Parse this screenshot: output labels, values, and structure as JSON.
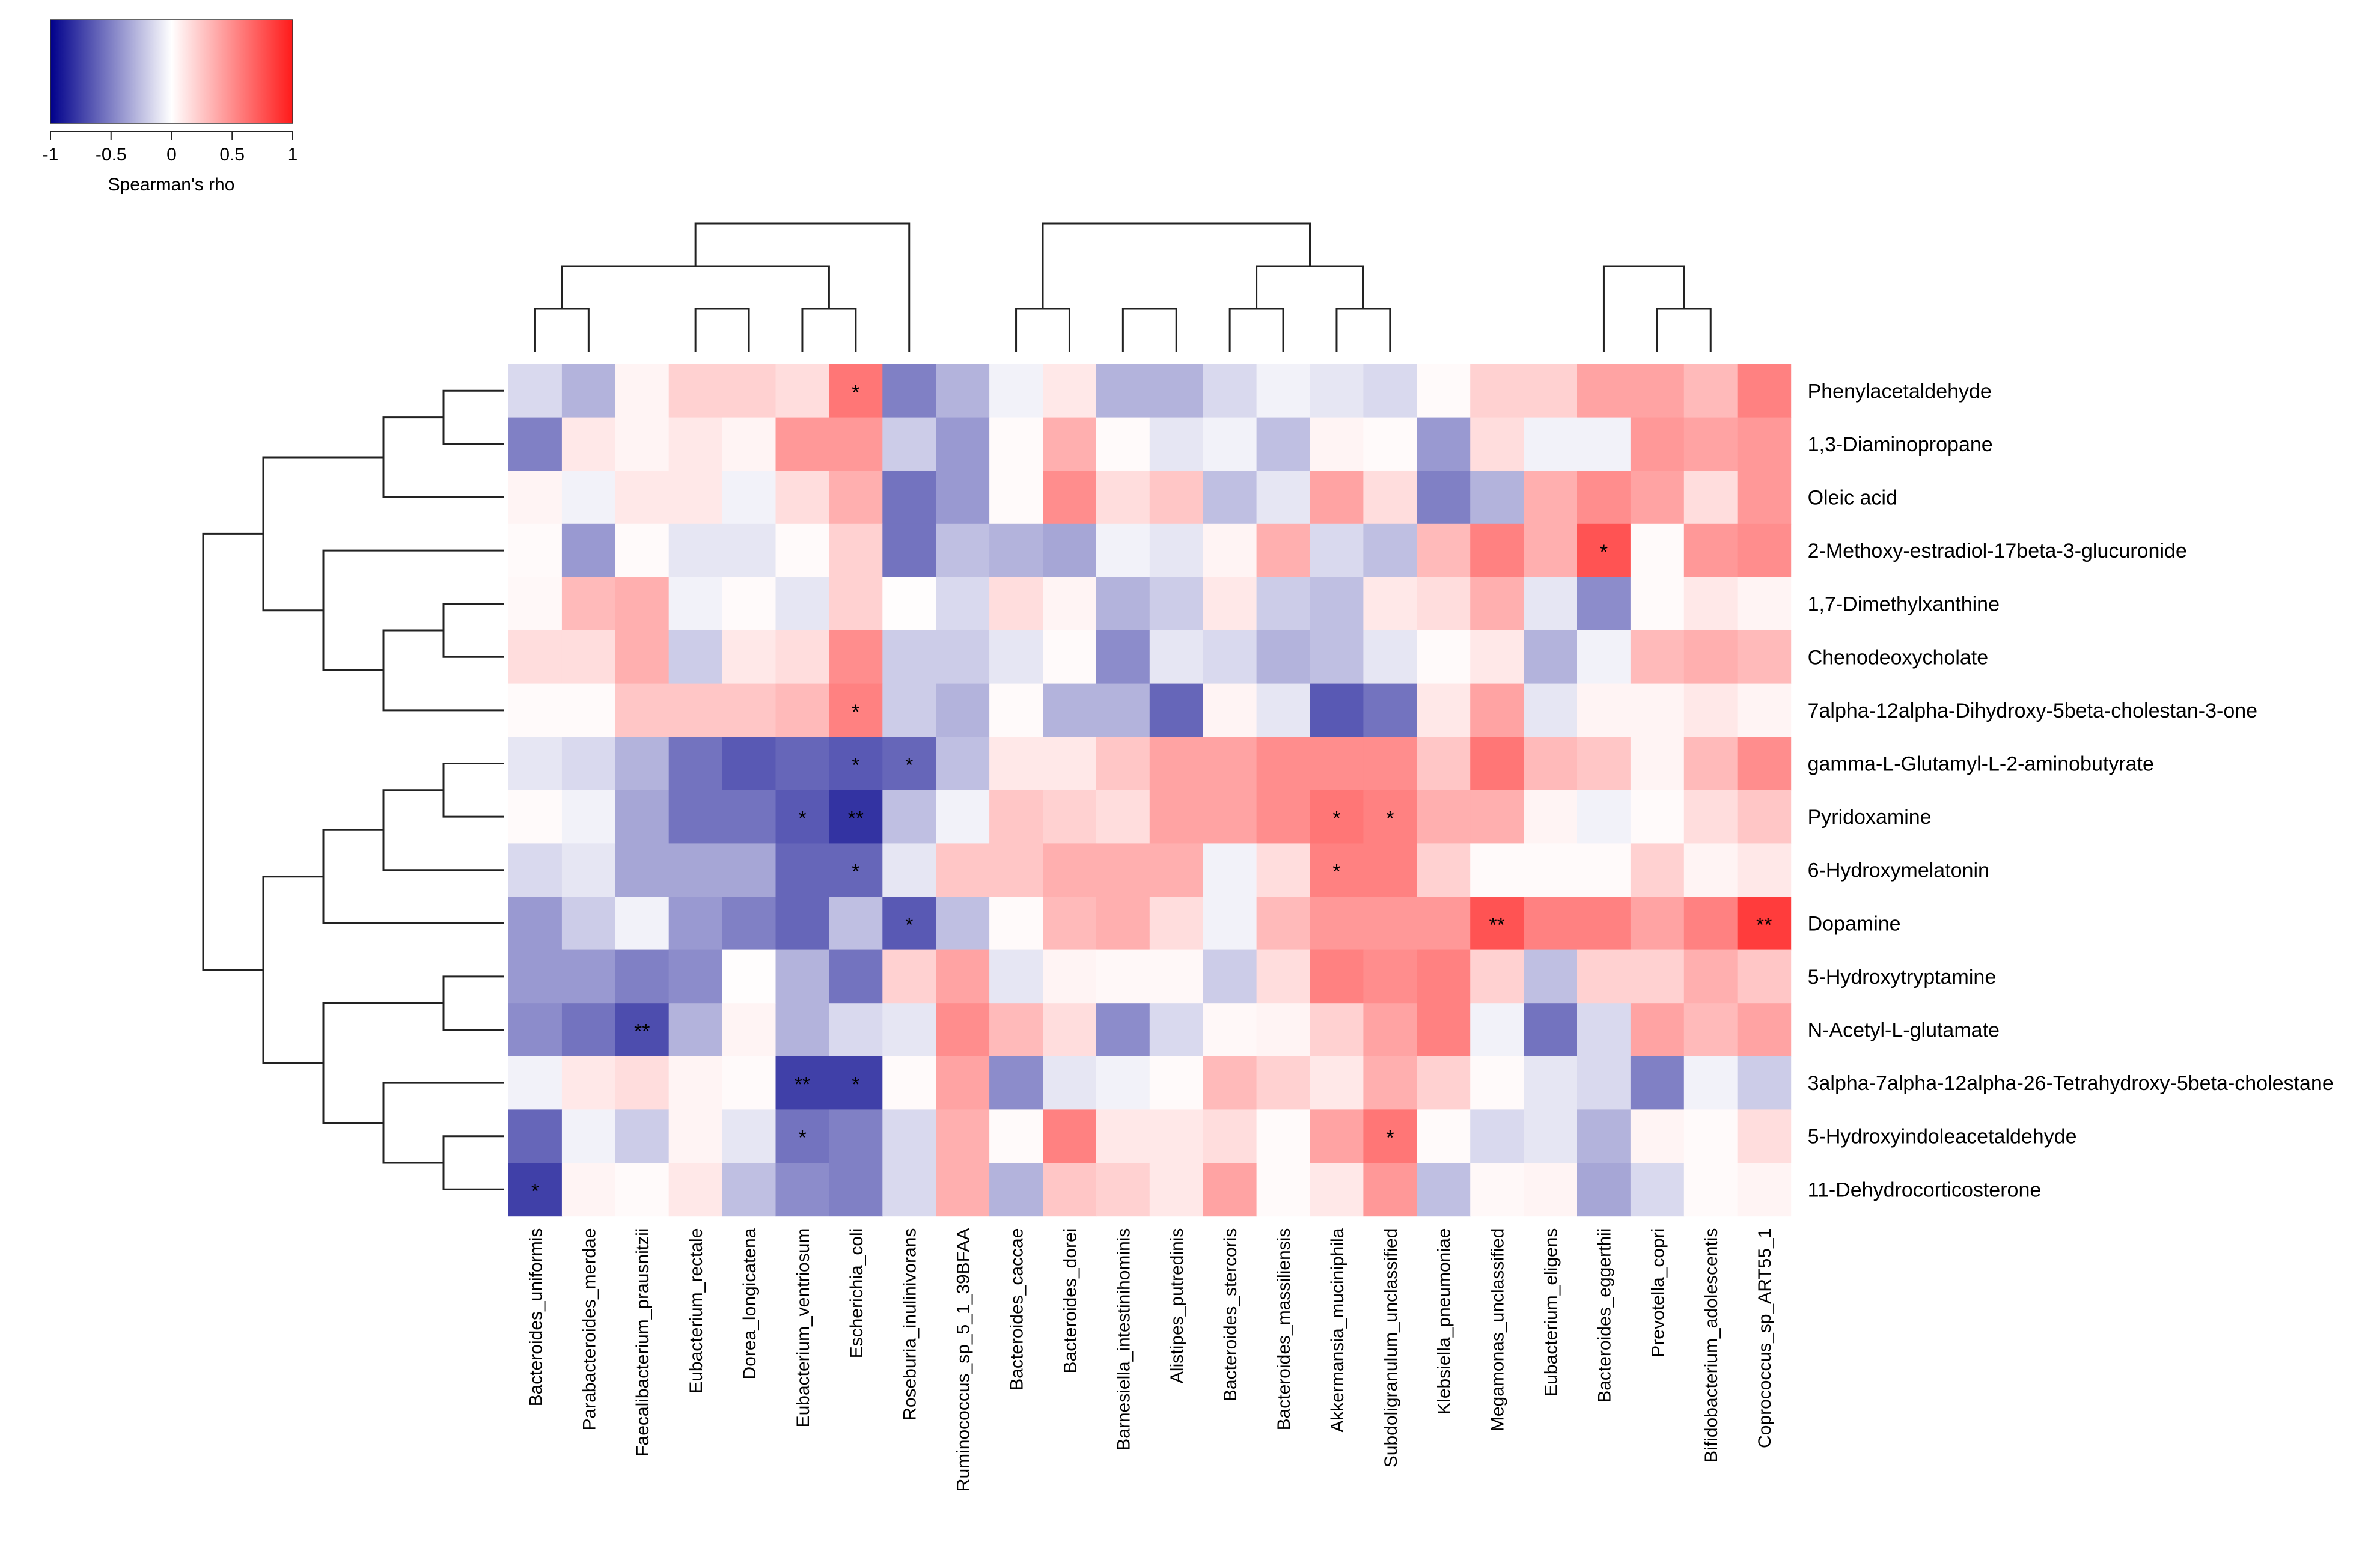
{
  "chart_data": {
    "type": "heatmap",
    "title": "",
    "colorbar": {
      "label": "Spearman's rho",
      "tick_labels": [
        "-1",
        "-0.5",
        "0",
        "0.5",
        "1"
      ],
      "tick_values": [
        -1,
        -0.5,
        0,
        0.5,
        1
      ],
      "range": [
        -1,
        1
      ],
      "low_color": "#00008b",
      "mid_color": "#ffffff",
      "high_color": "#ff1a1a"
    },
    "columns": [
      "Bacteroides_uniformis",
      "Parabacteroides_merdae",
      "Faecalibacterium_prausnitzii",
      "Eubacterium_rectale",
      "Dorea_longicatena",
      "Eubacterium_ventriosum",
      "Escherichia_coli",
      "Roseburia_inulinivorans",
      "Ruminococcus_sp_5_1_39BFAA",
      "Bacteroides_caccae",
      "Bacteroides_dorei",
      "Barnesiella_intestinihominis",
      "Alistipes_putredinis",
      "Bacteroides_stercoris",
      "Bacteroides_massiliensis",
      "Akkermansia_muciniphila",
      "Subdoligranulum_unclassified",
      "Klebsiella_pneumoniae",
      "Megamonas_unclassified",
      "Eubacterium_eligens",
      "Bacteroides_eggerthii",
      "Prevotella_copri",
      "Bifidobacterium_adolescentis",
      "Coprococcus_sp_ART55_1"
    ],
    "rows": [
      "Phenylacetaldehyde",
      "1,3-Diaminopropane",
      "Oleic acid",
      "2-Methoxy-estradiol-17beta-3-glucuronide",
      "1,7-Dimethylxanthine",
      "Chenodeoxycholate",
      "7alpha-12alpha-Dihydroxy-5beta-cholestan-3-one",
      "gamma-L-Glutamyl-L-2-aminobutyrate",
      "Pyridoxamine",
      "6-Hydroxymelatonin",
      "Dopamine",
      "5-Hydroxytryptamine",
      "N-Acetyl-L-glutamate",
      "3alpha-7alpha-12alpha-26-Tetrahydroxy-5beta-cholestane",
      "5-Hydroxyindoleacetaldehyde",
      "11-Dehydrocorticosterone"
    ],
    "values": [
      [
        -0.15,
        -0.3,
        0.05,
        0.2,
        0.2,
        0.15,
        0.6,
        -0.5,
        -0.3,
        -0.05,
        0.1,
        -0.3,
        -0.3,
        -0.15,
        -0.05,
        -0.1,
        -0.15,
        0.02,
        0.2,
        0.2,
        0.4,
        0.4,
        0.3,
        0.55
      ],
      [
        -0.5,
        0.1,
        0.05,
        0.1,
        0.05,
        0.45,
        0.45,
        -0.2,
        -0.4,
        0.02,
        0.35,
        0.02,
        -0.1,
        -0.05,
        -0.25,
        0.05,
        0.02,
        -0.4,
        0.15,
        -0.05,
        -0.05,
        0.45,
        0.4,
        0.45
      ],
      [
        0.05,
        -0.05,
        0.1,
        0.1,
        -0.05,
        0.15,
        0.35,
        -0.55,
        -0.4,
        0.02,
        0.5,
        0.15,
        0.25,
        -0.25,
        -0.1,
        0.4,
        0.15,
        -0.5,
        -0.3,
        0.35,
        0.5,
        0.4,
        0.15,
        0.45
      ],
      [
        0.02,
        -0.4,
        0.02,
        -0.1,
        -0.1,
        0.02,
        0.2,
        -0.55,
        -0.25,
        -0.3,
        -0.35,
        -0.05,
        -0.1,
        0.05,
        0.35,
        -0.15,
        -0.25,
        0.3,
        0.55,
        0.35,
        0.75,
        0.02,
        0.45,
        0.5
      ],
      [
        0.03,
        0.3,
        0.35,
        -0.05,
        0.02,
        -0.1,
        0.2,
        0.01,
        -0.15,
        0.15,
        0.05,
        -0.3,
        -0.2,
        0.1,
        -0.2,
        -0.25,
        0.1,
        0.15,
        0.35,
        -0.1,
        -0.45,
        0.02,
        0.1,
        0.05
      ],
      [
        0.15,
        0.15,
        0.35,
        -0.2,
        0.1,
        0.15,
        0.5,
        -0.2,
        -0.2,
        -0.1,
        0.02,
        -0.45,
        -0.1,
        -0.15,
        -0.3,
        -0.25,
        -0.1,
        0.02,
        0.1,
        -0.3,
        -0.05,
        0.3,
        0.35,
        0.3
      ],
      [
        0.02,
        0.02,
        0.25,
        0.25,
        0.25,
        0.3,
        0.55,
        -0.2,
        -0.3,
        0.02,
        -0.3,
        -0.3,
        -0.6,
        0.05,
        -0.1,
        -0.65,
        -0.55,
        0.1,
        0.4,
        -0.1,
        0.05,
        0.05,
        0.1,
        0.05
      ],
      [
        -0.1,
        -0.15,
        -0.3,
        -0.55,
        -0.65,
        -0.6,
        -0.65,
        -0.6,
        -0.25,
        0.1,
        0.1,
        0.25,
        0.4,
        0.4,
        0.5,
        0.5,
        0.5,
        0.25,
        0.6,
        0.3,
        0.25,
        0.05,
        0.3,
        0.5
      ],
      [
        0.02,
        -0.05,
        -0.35,
        -0.55,
        -0.55,
        -0.65,
        -0.8,
        -0.25,
        -0.05,
        0.25,
        0.2,
        0.15,
        0.4,
        0.4,
        0.5,
        0.6,
        0.55,
        0.35,
        0.35,
        0.05,
        -0.05,
        0.02,
        0.15,
        0.25
      ],
      [
        -0.15,
        -0.1,
        -0.35,
        -0.35,
        -0.35,
        -0.6,
        -0.6,
        -0.1,
        0.25,
        0.25,
        0.35,
        0.35,
        0.35,
        -0.05,
        0.15,
        0.55,
        0.55,
        0.2,
        0.02,
        0.02,
        0.02,
        0.2,
        0.05,
        0.1
      ],
      [
        -0.4,
        -0.2,
        -0.05,
        -0.4,
        -0.5,
        -0.6,
        -0.25,
        -0.65,
        -0.25,
        0.02,
        0.3,
        0.35,
        0.15,
        -0.05,
        0.3,
        0.45,
        0.45,
        0.45,
        0.75,
        0.55,
        0.55,
        0.4,
        0.55,
        0.85
      ],
      [
        -0.4,
        -0.4,
        -0.5,
        -0.45,
        0.01,
        -0.3,
        -0.55,
        0.2,
        0.4,
        -0.1,
        0.05,
        0.03,
        0.03,
        -0.2,
        0.15,
        0.55,
        0.5,
        0.55,
        0.2,
        -0.25,
        0.2,
        0.2,
        0.35,
        0.25
      ],
      [
        -0.45,
        -0.55,
        -0.7,
        -0.3,
        0.05,
        -0.3,
        -0.15,
        -0.1,
        0.5,
        0.3,
        0.15,
        -0.45,
        -0.15,
        0.03,
        0.05,
        0.2,
        0.4,
        0.55,
        -0.05,
        -0.55,
        -0.15,
        0.4,
        0.3,
        0.4
      ],
      [
        -0.05,
        0.1,
        0.15,
        0.05,
        0.02,
        -0.75,
        -0.75,
        0.02,
        0.4,
        -0.45,
        -0.1,
        -0.05,
        0.02,
        0.3,
        0.2,
        0.1,
        0.35,
        0.2,
        0.02,
        -0.1,
        -0.15,
        -0.5,
        -0.05,
        -0.2
      ],
      [
        -0.6,
        -0.05,
        -0.2,
        0.05,
        -0.1,
        -0.55,
        -0.5,
        -0.15,
        0.35,
        0.02,
        0.55,
        0.1,
        0.1,
        0.15,
        0.02,
        0.4,
        0.6,
        0.02,
        -0.15,
        -0.1,
        -0.3,
        0.05,
        0.02,
        0.15
      ],
      [
        -0.75,
        0.05,
        0.02,
        0.1,
        -0.25,
        -0.45,
        -0.5,
        -0.15,
        0.35,
        -0.3,
        0.25,
        0.2,
        0.1,
        0.4,
        0.02,
        0.1,
        0.45,
        -0.25,
        0.03,
        0.05,
        -0.35,
        -0.15,
        0.02,
        0.05
      ]
    ],
    "significance": [
      {
        "row": "Phenylacetaldehyde",
        "column": "Escherichia_coli",
        "label": "*"
      },
      {
        "row": "2-Methoxy-estradiol-17beta-3-glucuronide",
        "column": "Bacteroides_eggerthii",
        "label": "*"
      },
      {
        "row": "7alpha-12alpha-Dihydroxy-5beta-cholestan-3-one",
        "column": "Escherichia_coli",
        "label": "*"
      },
      {
        "row": "gamma-L-Glutamyl-L-2-aminobutyrate",
        "column": "Escherichia_coli",
        "label": "*"
      },
      {
        "row": "gamma-L-Glutamyl-L-2-aminobutyrate",
        "column": "Roseburia_inulinivorans",
        "label": "*"
      },
      {
        "row": "Pyridoxamine",
        "column": "Eubacterium_ventriosum",
        "label": "*"
      },
      {
        "row": "Pyridoxamine",
        "column": "Escherichia_coli",
        "label": "**"
      },
      {
        "row": "Pyridoxamine",
        "column": "Akkermansia_muciniphila",
        "label": "*"
      },
      {
        "row": "Pyridoxamine",
        "column": "Subdoligranulum_unclassified",
        "label": "*"
      },
      {
        "row": "6-Hydroxymelatonin",
        "column": "Escherichia_coli",
        "label": "*"
      },
      {
        "row": "6-Hydroxymelatonin",
        "column": "Akkermansia_muciniphila",
        "label": "*"
      },
      {
        "row": "Dopamine",
        "column": "Roseburia_inulinivorans",
        "label": "*"
      },
      {
        "row": "Dopamine",
        "column": "Megamonas_unclassified",
        "label": "**"
      },
      {
        "row": "Dopamine",
        "column": "Coprococcus_sp_ART55_1",
        "label": "**"
      },
      {
        "row": "N-Acetyl-L-glutamate",
        "column": "Faecalibacterium_prausnitzii",
        "label": "**"
      },
      {
        "row": "3alpha-7alpha-12alpha-26-Tetrahydroxy-5beta-cholestane",
        "column": "Eubacterium_ventriosum",
        "label": "**"
      },
      {
        "row": "3alpha-7alpha-12alpha-26-Tetrahydroxy-5beta-cholestane",
        "column": "Escherichia_coli",
        "label": "*"
      },
      {
        "row": "5-Hydroxyindoleacetaldehyde",
        "column": "Eubacterium_ventriosum",
        "label": "*"
      },
      {
        "row": "5-Hydroxyindoleacetaldehyde",
        "column": "Subdoligranulum_unclassified",
        "label": "*"
      },
      {
        "row": "11-Dehydrocorticosterone",
        "column": "Bacteroides_uniformis",
        "label": "*"
      }
    ],
    "column_dendrogram": [
      [
        0,
        1
      ],
      [
        0.5,
        2
      ],
      [
        3,
        4
      ],
      [
        5,
        6
      ],
      [
        25,
        26
      ],
      [
        24,
        27
      ],
      [
        28,
        8
      ],
      [
        11,
        12
      ],
      [
        13,
        14
      ],
      [
        30,
        31
      ],
      [
        15,
        16
      ],
      [
        33,
        17
      ],
      [
        21,
        22
      ],
      [
        35,
        23
      ],
      [
        20,
        36
      ],
      [
        19,
        37
      ],
      [
        9,
        10
      ],
      [
        32,
        34
      ],
      [
        38,
        39
      ],
      [
        40,
        41
      ],
      [
        29,
        7
      ],
      [
        42,
        43
      ],
      [
        44,
        45
      ]
    ],
    "row_dendrogram": [
      [
        0,
        1
      ],
      [
        16,
        2
      ],
      [
        4,
        5
      ],
      [
        18,
        6
      ],
      [
        3,
        19
      ],
      [
        17,
        20
      ],
      [
        7,
        8
      ],
      [
        22,
        9
      ],
      [
        23,
        10
      ],
      [
        11,
        12
      ],
      [
        14,
        15
      ],
      [
        13,
        26
      ],
      [
        25,
        27
      ],
      [
        24,
        28
      ],
      [
        21,
        29
      ]
    ]
  }
}
